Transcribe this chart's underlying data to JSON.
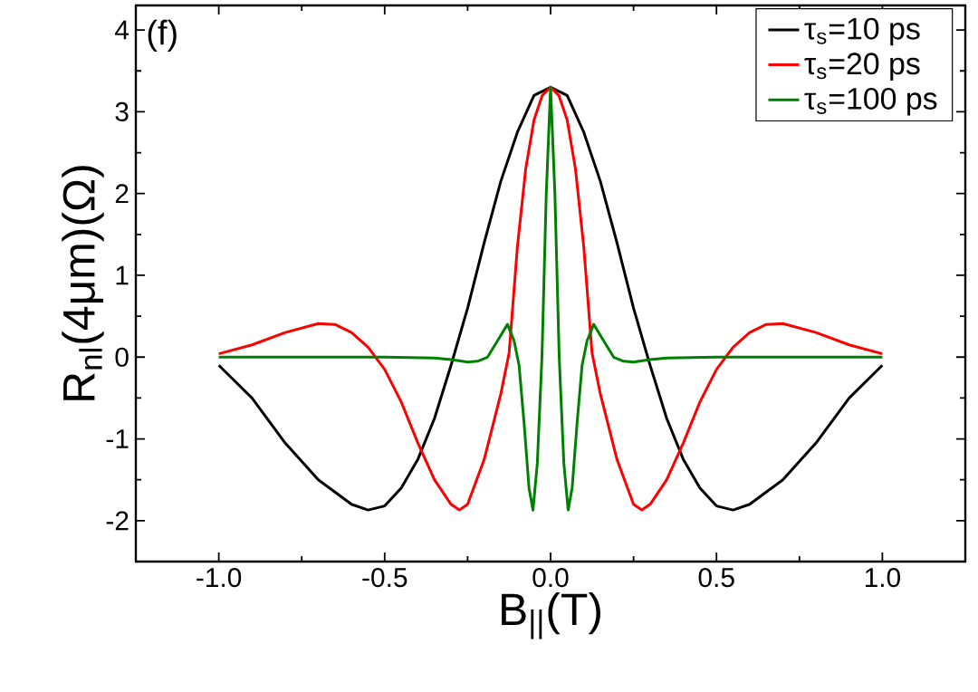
{
  "chart_data": {
    "type": "line",
    "xlabel": "B$_{||}$(T)",
    "ylabel": "R$_{nl}$(4μm)(Ω)",
    "annotations": [
      "(f)"
    ],
    "xlim": [
      -1.25,
      1.25
    ],
    "ylim": [
      -2.5,
      4.3
    ],
    "xticks": [
      {
        "value": -1,
        "label": "-1.0"
      },
      {
        "value": -0.5,
        "label": "-0.5"
      },
      {
        "value": 0,
        "label": "0.0"
      },
      {
        "value": 0.5,
        "label": "0.5"
      },
      {
        "value": 1,
        "label": "1.0"
      }
    ],
    "yticks": [
      -2,
      -1,
      0,
      1,
      2,
      3,
      4
    ],
    "legend": "top right",
    "series": [
      {
        "name": "τ$_{s}$=10 ps",
        "color": "#000000",
        "x": [
          -1.0,
          -0.9,
          -0.8,
          -0.7,
          -0.6,
          -0.55,
          -0.5,
          -0.45,
          -0.4,
          -0.35,
          -0.3,
          -0.25,
          -0.2,
          -0.15,
          -0.1,
          -0.05,
          0,
          0.05,
          0.1,
          0.15,
          0.2,
          0.25,
          0.3,
          0.35,
          0.4,
          0.45,
          0.5,
          0.55,
          0.6,
          0.7,
          0.8,
          0.9,
          1.0
        ],
        "values": [
          -0.1,
          -0.5,
          -1.05,
          -1.5,
          -1.8,
          -1.87,
          -1.82,
          -1.6,
          -1.25,
          -0.75,
          -0.1,
          0.6,
          1.4,
          2.15,
          2.75,
          3.2,
          3.3,
          3.2,
          2.75,
          2.15,
          1.4,
          0.6,
          -0.1,
          -0.75,
          -1.25,
          -1.6,
          -1.82,
          -1.87,
          -1.8,
          -1.5,
          -1.05,
          -0.5,
          -0.1
        ]
      },
      {
        "name": "τ$_{s}$=20 ps",
        "color": "#ff0000",
        "x": [
          -1.0,
          -0.9,
          -0.8,
          -0.7,
          -0.65,
          -0.6,
          -0.55,
          -0.5,
          -0.45,
          -0.4,
          -0.35,
          -0.3,
          -0.275,
          -0.25,
          -0.2,
          -0.15,
          -0.125,
          -0.1,
          -0.075,
          -0.05,
          -0.025,
          0,
          0.025,
          0.05,
          0.075,
          0.1,
          0.125,
          0.15,
          0.2,
          0.25,
          0.275,
          0.3,
          0.35,
          0.4,
          0.45,
          0.5,
          0.55,
          0.6,
          0.65,
          0.7,
          0.8,
          0.9,
          1.0
        ],
        "values": [
          0.04,
          0.15,
          0.3,
          0.41,
          0.4,
          0.3,
          0.12,
          -0.15,
          -0.55,
          -1.05,
          -1.5,
          -1.8,
          -1.87,
          -1.8,
          -1.25,
          -0.45,
          0.05,
          1.35,
          2.3,
          2.9,
          3.2,
          3.3,
          3.2,
          2.9,
          2.3,
          1.35,
          0.05,
          -0.45,
          -1.25,
          -1.8,
          -1.87,
          -1.8,
          -1.5,
          -1.05,
          -0.55,
          -0.15,
          0.12,
          0.3,
          0.4,
          0.41,
          0.3,
          0.15,
          0.04
        ]
      },
      {
        "name": "τ$_{s}$=100 ps",
        "color": "#008000",
        "x": [
          -1.0,
          -0.5,
          -0.35,
          -0.3,
          -0.25,
          -0.22,
          -0.19,
          -0.16,
          -0.13,
          -0.11,
          -0.095,
          -0.08,
          -0.065,
          -0.053,
          -0.04,
          -0.026,
          -0.013,
          0,
          0.013,
          0.026,
          0.04,
          0.053,
          0.065,
          0.08,
          0.095,
          0.11,
          0.13,
          0.16,
          0.19,
          0.22,
          0.25,
          0.3,
          0.35,
          0.5,
          1.0
        ],
        "values": [
          0,
          0,
          -0.01,
          -0.03,
          -0.06,
          -0.05,
          0,
          0.2,
          0.4,
          0.2,
          -0.1,
          -0.8,
          -1.6,
          -1.87,
          -1.3,
          0,
          2.0,
          3.3,
          2.0,
          0,
          -1.3,
          -1.87,
          -1.6,
          -0.8,
          -0.1,
          0.2,
          0.4,
          0.2,
          0,
          -0.05,
          -0.06,
          -0.03,
          -0.01,
          0,
          0
        ]
      }
    ]
  }
}
